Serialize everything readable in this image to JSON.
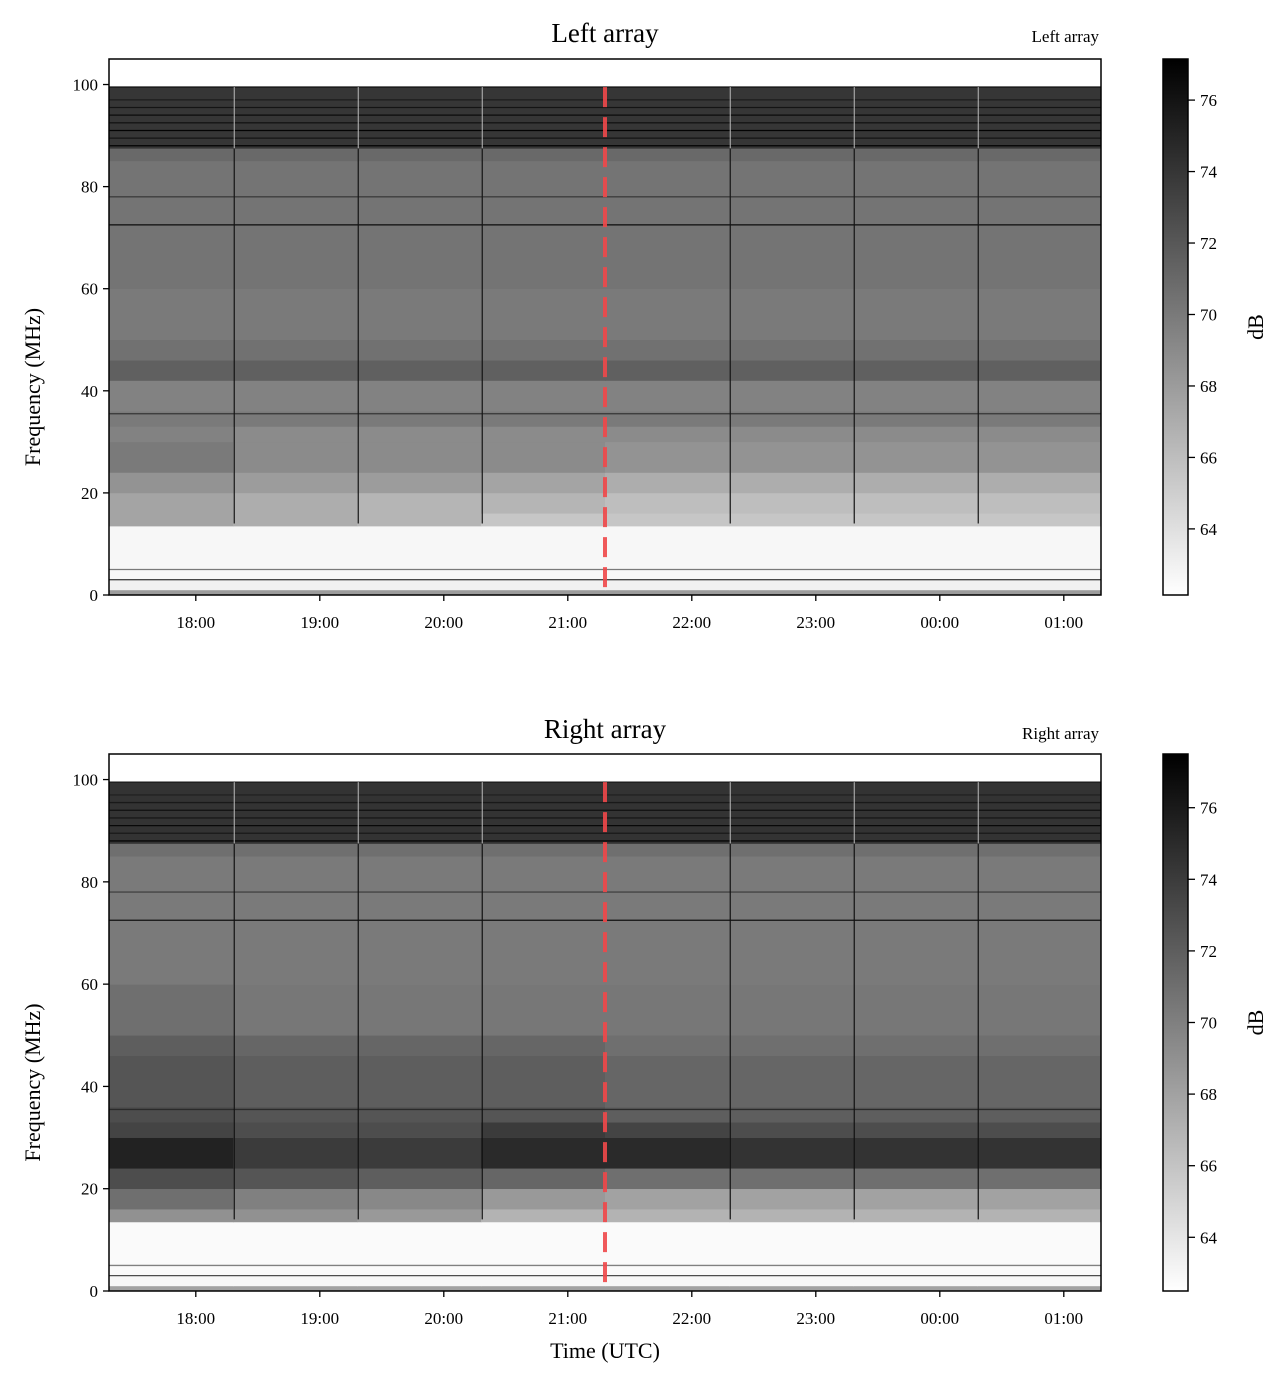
{
  "chart_data": [
    {
      "type": "heatmap",
      "title": "Left array",
      "corner_label": "Left array",
      "xlabel": "",
      "ylabel": "Frequency (MHz)",
      "xlim_hours": [
        17.3,
        25.3
      ],
      "ylim": [
        0,
        105
      ],
      "y_ticks": [
        0,
        20,
        40,
        60,
        80,
        100
      ],
      "y_tick_labels": [
        "0",
        "20",
        "40",
        "60",
        "80",
        "100"
      ],
      "x_ticks_hours": [
        18,
        19,
        20,
        21,
        22,
        23,
        24,
        25
      ],
      "x_tick_labels": [
        "18:00",
        "19:00",
        "20:00",
        "21:00",
        "22:00",
        "23:00",
        "00:00",
        "01:00"
      ],
      "colorbar": {
        "label": "dB",
        "range": [
          62.15,
          77.15
        ],
        "ticks": [
          64,
          66,
          68,
          70,
          72,
          74,
          76
        ],
        "tick_labels": [
          "64",
          "66",
          "68",
          "70",
          "72",
          "74",
          "76"
        ]
      },
      "time_edges_hours": [
        17.3,
        18.3,
        19.3,
        20.3,
        21.3,
        22.3,
        23.3,
        24.3,
        25.3
      ],
      "freq_edges_mhz": [
        0,
        1,
        3,
        13.5,
        16,
        20,
        24,
        30,
        33,
        36,
        42,
        46,
        50,
        60,
        85,
        87.5,
        99.5
      ],
      "values_db": [
        [
          68,
          68,
          68,
          68,
          68,
          68,
          68,
          68
        ],
        [
          63,
          63,
          63,
          63,
          63,
          63,
          63,
          63
        ],
        [
          62.6,
          62.6,
          62.6,
          62.6,
          62.6,
          62.6,
          62.6,
          62.6
        ],
        [
          67.5,
          67,
          66.5,
          65.5,
          65.5,
          65.5,
          65.5,
          65.5
        ],
        [
          67.5,
          67,
          66.5,
          66.5,
          66,
          66,
          66,
          66
        ],
        [
          68.5,
          68,
          68,
          67.5,
          67,
          67,
          67,
          67
        ],
        [
          70,
          69,
          69,
          69,
          68.5,
          68.5,
          68.5,
          68.5
        ],
        [
          69.5,
          69,
          69,
          69,
          69,
          69,
          69,
          69
        ],
        [
          70,
          70,
          70,
          70,
          70,
          70,
          70,
          70
        ],
        [
          69.5,
          69.5,
          69.5,
          69.5,
          69.5,
          69.5,
          69.5,
          69.5
        ],
        [
          71.5,
          71.5,
          71.5,
          71.5,
          71.5,
          71.5,
          71.5,
          71.5
        ],
        [
          70.5,
          70.5,
          70.5,
          70.5,
          70.5,
          70.5,
          70.5,
          70.5
        ],
        [
          70,
          70,
          70,
          70,
          70,
          70,
          70,
          70
        ],
        [
          70.3,
          70.3,
          70.3,
          70.3,
          70.3,
          70.3,
          70.3,
          70.3
        ],
        [
          71,
          71,
          71,
          71,
          71,
          71,
          71,
          71
        ],
        [
          74,
          74,
          74,
          74,
          74,
          74,
          74,
          74
        ]
      ],
      "horizontal_features": [
        {
          "freq_mhz": 78,
          "db": 73.5
        },
        {
          "freq_mhz": 72.5,
          "db": 76.5
        },
        {
          "freq_mhz": 35.5,
          "db": 74
        },
        {
          "freq_mhz": 5,
          "db": 70
        },
        {
          "freq_mhz": 3,
          "db": 73
        },
        {
          "freq_mhz": 88,
          "db": 77
        },
        {
          "freq_mhz": 89.5,
          "db": 76
        },
        {
          "freq_mhz": 91,
          "db": 77
        },
        {
          "freq_mhz": 92.5,
          "db": 76
        },
        {
          "freq_mhz": 94,
          "db": 76.5
        },
        {
          "freq_mhz": 95.5,
          "db": 76
        },
        {
          "freq_mhz": 97,
          "db": 75.5
        },
        {
          "freq_mhz": 99.5,
          "db": 76
        }
      ],
      "vertical_events_hours": [
        18.31,
        19.31,
        20.31,
        22.31,
        23.31,
        24.31
      ],
      "event_db": 76,
      "marker_time_hours": 21.3,
      "marker_color": "#f0484a"
    },
    {
      "type": "heatmap",
      "title": "Right array",
      "corner_label": "Right array",
      "xlabel": "Time (UTC)",
      "ylabel": "Frequency (MHz)",
      "xlim_hours": [
        17.3,
        25.3
      ],
      "ylim": [
        0,
        105
      ],
      "y_ticks": [
        0,
        20,
        40,
        60,
        80,
        100
      ],
      "y_tick_labels": [
        "0",
        "20",
        "40",
        "60",
        "80",
        "100"
      ],
      "x_ticks_hours": [
        18,
        19,
        20,
        21,
        22,
        23,
        24,
        25
      ],
      "x_tick_labels": [
        "18:00",
        "19:00",
        "20:00",
        "21:00",
        "22:00",
        "23:00",
        "00:00",
        "01:00"
      ],
      "colorbar": {
        "label": "dB",
        "range": [
          62.5,
          77.5
        ],
        "ticks": [
          64,
          66,
          68,
          70,
          72,
          74,
          76
        ],
        "tick_labels": [
          "64",
          "66",
          "68",
          "70",
          "72",
          "74",
          "76"
        ]
      },
      "time_edges_hours": [
        17.3,
        18.3,
        19.3,
        20.3,
        21.3,
        22.3,
        23.3,
        24.3,
        25.3
      ],
      "freq_edges_mhz": [
        0,
        1,
        3,
        13.5,
        16,
        20,
        24,
        30,
        33,
        36,
        42,
        46,
        50,
        60,
        85,
        87.5,
        99.5
      ],
      "values_db": [
        [
          68,
          68,
          68,
          68,
          68,
          68,
          68,
          68
        ],
        [
          63,
          63,
          63,
          63,
          63,
          63,
          63,
          63
        ],
        [
          62.8,
          62.8,
          62.8,
          62.8,
          62.8,
          62.8,
          62.8,
          62.8
        ],
        [
          69,
          69,
          68.5,
          67,
          67,
          67,
          67,
          67
        ],
        [
          71,
          70,
          69.5,
          68.5,
          68,
          68,
          68,
          68
        ],
        [
          73,
          72.5,
          72,
          71.5,
          71,
          71,
          71,
          71
        ],
        [
          75.5,
          74,
          74,
          75,
          75,
          74.5,
          74.5,
          74.5
        ],
        [
          73.5,
          73,
          73,
          74,
          73.5,
          73,
          73,
          73
        ],
        [
          73,
          72.5,
          72.5,
          72.5,
          72,
          72,
          72,
          72
        ],
        [
          72.5,
          72,
          72,
          72,
          71.5,
          71.5,
          71.5,
          71.5
        ],
        [
          72.5,
          72,
          72,
          72,
          71.5,
          71.5,
          71.5,
          71.5
        ],
        [
          72,
          71.5,
          71.5,
          71.5,
          71,
          71,
          71,
          71
        ],
        [
          71,
          70.5,
          70.5,
          70.5,
          70.5,
          70.5,
          70.5,
          70.5
        ],
        [
          70.3,
          70.3,
          70.3,
          70.3,
          70.3,
          70.3,
          70.3,
          70.3
        ],
        [
          71,
          71,
          71,
          71,
          71,
          71,
          71,
          71
        ],
        [
          74.5,
          74.5,
          74.5,
          74.5,
          74.5,
          74.5,
          74.5,
          74.5
        ]
      ],
      "horizontal_features": [
        {
          "freq_mhz": 78,
          "db": 73.5
        },
        {
          "freq_mhz": 72.5,
          "db": 76.5
        },
        {
          "freq_mhz": 35.5,
          "db": 75
        },
        {
          "freq_mhz": 5,
          "db": 70
        },
        {
          "freq_mhz": 3,
          "db": 73
        },
        {
          "freq_mhz": 88,
          "db": 77
        },
        {
          "freq_mhz": 89.5,
          "db": 76
        },
        {
          "freq_mhz": 91,
          "db": 77
        },
        {
          "freq_mhz": 92.5,
          "db": 76
        },
        {
          "freq_mhz": 94,
          "db": 76.5
        },
        {
          "freq_mhz": 95.5,
          "db": 76
        },
        {
          "freq_mhz": 97,
          "db": 75.5
        },
        {
          "freq_mhz": 99.5,
          "db": 76
        }
      ],
      "vertical_events_hours": [
        18.31,
        19.31,
        20.31,
        22.31,
        23.31,
        24.31
      ],
      "event_db": 76.5,
      "marker_time_hours": 21.3,
      "marker_color": "#f0484a"
    }
  ]
}
